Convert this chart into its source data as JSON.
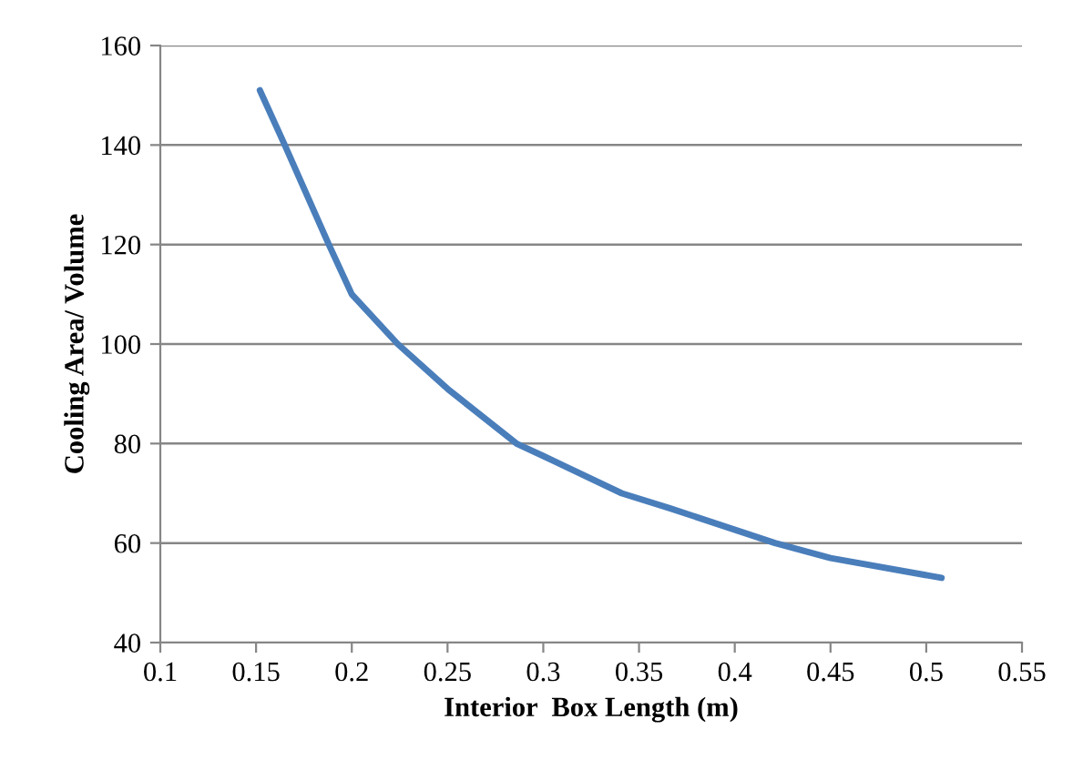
{
  "chart_data": {
    "type": "line",
    "xlabel": "Interior  Box Length (m)",
    "ylabel": "Cooling Area/ Volume",
    "series": [
      {
        "color": "#4a7ebb",
        "x": [
          0.152,
          0.165,
          0.188,
          0.2,
          0.224,
          0.25,
          0.286,
          0.3,
          0.341,
          0.366,
          0.421,
          0.45,
          0.508
        ],
        "values": [
          151,
          140,
          120,
          110,
          100,
          91,
          80,
          77.5,
          70,
          67,
          60,
          57,
          53
        ]
      }
    ],
    "xlim": [
      0.1,
      0.55
    ],
    "xticks": [
      0.1,
      0.15,
      0.2,
      0.25,
      0.3,
      0.35,
      0.4,
      0.45,
      0.5,
      0.55
    ],
    "ylim": [
      40,
      160
    ],
    "yticks": [
      40,
      60,
      80,
      100,
      120,
      140,
      160
    ],
    "grid": "y",
    "legend": false,
    "marker": "none",
    "line_style": "solid"
  }
}
